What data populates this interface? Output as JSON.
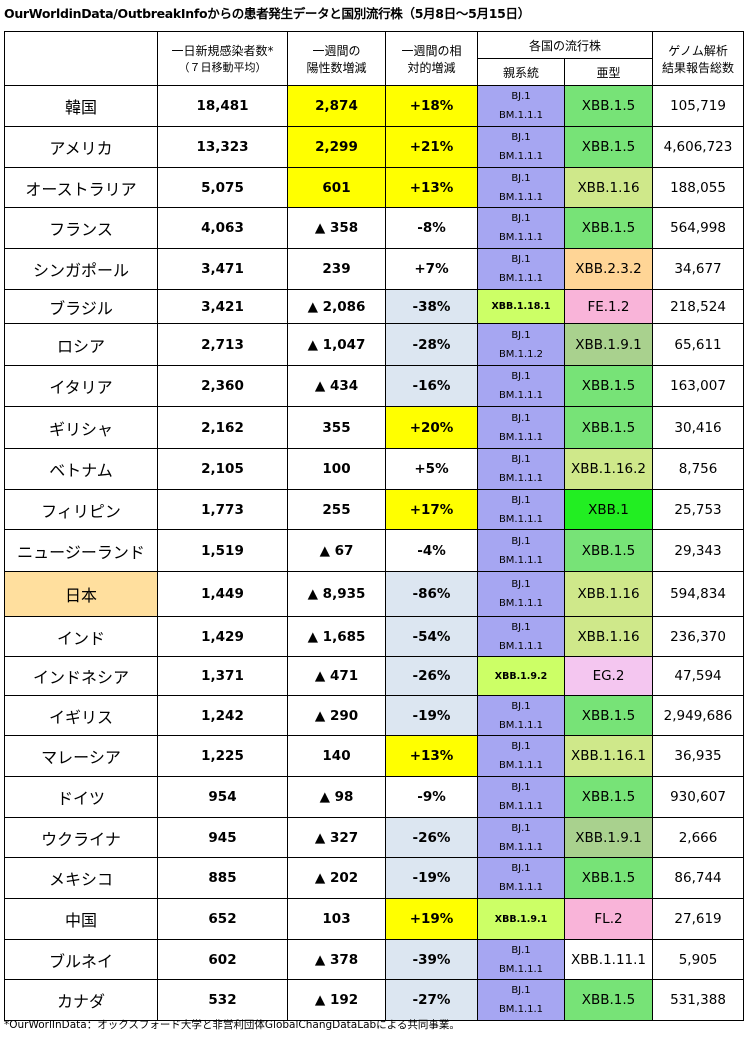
{
  "title": "OurWorldinData/OutbreakInfoからの患者発生データと国別流行株（5月8日～5月15日）",
  "headers": {
    "daily_new_line1": "一日新規感染者数*",
    "daily_new_line2": "（７日移動平均）",
    "week_change_line1": "一週間の",
    "week_change_line2": "陽性数増減",
    "relative_line1": "一週間の相",
    "relative_line2": "対的増減",
    "strains": "各国の流行株",
    "parent": "親系統",
    "sublineage": "亜型",
    "genome_line1": "ゲノム解析",
    "genome_line2": "結果報告総数"
  },
  "rows": [
    {
      "country": "韓国",
      "daily": "18,481",
      "week": "2,874",
      "rel": "+18%",
      "parent1": "BJ.1",
      "parent2": "BM.1.1.1",
      "sub": "XBB.1.5",
      "genome": "105,719"
    },
    {
      "country": "アメリカ",
      "daily": "13,323",
      "week": "2,299",
      "rel": "+21%",
      "parent1": "BJ.1",
      "parent2": "BM.1.1.1",
      "sub": "XBB.1.5",
      "genome": "4,606,723"
    },
    {
      "country": "オーストラリア",
      "daily": "5,075",
      "week": "601",
      "rel": "+13%",
      "parent1": "BJ.1",
      "parent2": "BM.1.1.1",
      "sub": "XBB.1.16",
      "genome": "188,055"
    },
    {
      "country": "フランス",
      "daily": "4,063",
      "week": "▲ 358",
      "rel": "-8%",
      "parent1": "BJ.1",
      "parent2": "BM.1.1.1",
      "sub": "XBB.1.5",
      "genome": "564,998"
    },
    {
      "country": "シンガポール",
      "daily": "3,471",
      "week": "239",
      "rel": "+7%",
      "parent1": "BJ.1",
      "parent2": "BM.1.1.1",
      "sub": "XBB.2.3.2",
      "genome": "34,677"
    },
    {
      "country": "ブラジル",
      "daily": "3,421",
      "week": "▲ 2,086",
      "rel": "-38%",
      "parent1": "XBB.1.18.1",
      "parent2": "",
      "sub": "FE.1.2",
      "genome": "218,524"
    },
    {
      "country": "ロシア",
      "daily": "2,713",
      "week": "▲ 1,047",
      "rel": "-28%",
      "parent1": "BJ.1",
      "parent2": "BM.1.1.2",
      "sub": "XBB.1.9.1",
      "genome": "65,611"
    },
    {
      "country": "イタリア",
      "daily": "2,360",
      "week": "▲ 434",
      "rel": "-16%",
      "parent1": "BJ.1",
      "parent2": "BM.1.1.1",
      "sub": "XBB.1.5",
      "genome": "163,007"
    },
    {
      "country": "ギリシャ",
      "daily": "2,162",
      "week": "355",
      "rel": "+20%",
      "parent1": "BJ.1",
      "parent2": "BM.1.1.1",
      "sub": "XBB.1.5",
      "genome": "30,416"
    },
    {
      "country": "ベトナム",
      "daily": "2,105",
      "week": "100",
      "rel": "+5%",
      "parent1": "BJ.1",
      "parent2": "BM.1.1.1",
      "sub": "XBB.1.16.2",
      "genome": "8,756"
    },
    {
      "country": "フィリピン",
      "daily": "1,773",
      "week": "255",
      "rel": "+17%",
      "parent1": "BJ.1",
      "parent2": "BM.1.1.1",
      "sub": "XBB.1",
      "genome": "25,753"
    },
    {
      "country": "ニュージーランド",
      "daily": "1,519",
      "week": "▲ 67",
      "rel": "-4%",
      "parent1": "BJ.1",
      "parent2": "BM.1.1.1",
      "sub": "XBB.1.5",
      "genome": "29,343"
    },
    {
      "country": "日本",
      "daily": "1,449",
      "week": "▲ 8,935",
      "rel": "-86%",
      "parent1": "BJ.1",
      "parent2": "BM.1.1.1",
      "sub": "XBB.1.16",
      "genome": "594,834"
    },
    {
      "country": "インド",
      "daily": "1,429",
      "week": "▲ 1,685",
      "rel": "-54%",
      "parent1": "BJ.1",
      "parent2": "BM.1.1.1",
      "sub": "XBB.1.16",
      "genome": "236,370"
    },
    {
      "country": "インドネシア",
      "daily": "1,371",
      "week": "▲ 471",
      "rel": "-26%",
      "parent1": "XBB.1.9.2",
      "parent2": "",
      "sub": "EG.2",
      "genome": "47,594"
    },
    {
      "country": "イギリス",
      "daily": "1,242",
      "week": "▲ 290",
      "rel": "-19%",
      "parent1": "BJ.1",
      "parent2": "BM.1.1.1",
      "sub": "XBB.1.5",
      "genome": "2,949,686"
    },
    {
      "country": "マレーシア",
      "daily": "1,225",
      "week": "140",
      "rel": "+13%",
      "parent1": "BJ.1",
      "parent2": "BM.1.1.1",
      "sub": "XBB.1.16.1",
      "genome": "36,935"
    },
    {
      "country": "ドイツ",
      "daily": "954",
      "week": "▲ 98",
      "rel": "-9%",
      "parent1": "BJ.1",
      "parent2": "BM.1.1.1",
      "sub": "XBB.1.5",
      "genome": "930,607"
    },
    {
      "country": "ウクライナ",
      "daily": "945",
      "week": "▲ 327",
      "rel": "-26%",
      "parent1": "BJ.1",
      "parent2": "BM.1.1.1",
      "sub": "XBB.1.9.1",
      "genome": "2,666"
    },
    {
      "country": "メキシコ",
      "daily": "885",
      "week": "▲ 202",
      "rel": "-19%",
      "parent1": "BJ.1",
      "parent2": "BM.1.1.1",
      "sub": "XBB.1.5",
      "genome": "86,744"
    },
    {
      "country": "中国",
      "daily": "652",
      "week": "103",
      "rel": "+19%",
      "parent1": "XBB.1.9.1",
      "parent2": "",
      "sub": "FL.2",
      "genome": "27,619"
    },
    {
      "country": "ブルネイ",
      "daily": "602",
      "week": "▲ 378",
      "rel": "-39%",
      "parent1": "BJ.1",
      "parent2": "BM.1.1.1",
      "sub": "XBB.1.11.1",
      "genome": "5,905"
    },
    {
      "country": "カナダ",
      "daily": "532",
      "week": "▲ 192",
      "rel": "-27%",
      "parent1": "BJ.1",
      "parent2": "BM.1.1.1",
      "sub": "XBB.1.5",
      "genome": "531,388"
    }
  ],
  "styles": {
    "week_highlight": [
      "yellow",
      "yellow",
      "yellow",
      "",
      "",
      "",
      "",
      "",
      "",
      "",
      "",
      "",
      "",
      "",
      "",
      "",
      "",
      "",
      "",
      "",
      "",
      "",
      ""
    ],
    "rel_highlight": [
      "yellow",
      "yellow",
      "yellow",
      "",
      "",
      "blue",
      "blue",
      "blue",
      "yellow",
      "",
      "yellow",
      "",
      "blue",
      "blue",
      "blue",
      "blue",
      "yellow",
      "",
      "blue",
      "blue",
      "yellow",
      "blue",
      "blue"
    ],
    "sub_color": [
      "green",
      "green",
      "olive",
      "green",
      "peach",
      "pink",
      "sage",
      "green",
      "green",
      "olive",
      "bright",
      "green",
      "olive",
      "olive",
      "lav",
      "green",
      "olive",
      "green",
      "sage",
      "green",
      "pink",
      "",
      "green"
    ],
    "country_highlight": [
      "",
      "",
      "",
      "",
      "",
      "",
      "",
      "",
      "",
      "",
      "",
      "",
      "tan",
      "",
      "",
      "",
      "",
      "",
      "",
      "",
      "",
      "",
      ""
    ]
  },
  "footnote": "*OurWorlInData：オックスフォード大学と非営利団体GlobalChangDataLabによる共同事業。"
}
